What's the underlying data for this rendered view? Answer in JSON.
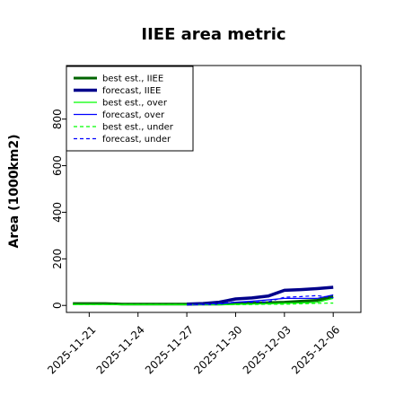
{
  "chart_data": {
    "type": "line",
    "title": "IIEE area metric",
    "xlabel": "",
    "ylabel": "Area (1000km2)",
    "ylim": [
      -30,
      1030
    ],
    "yticks": [
      0,
      200,
      400,
      600,
      800
    ],
    "xticks": [
      "2025-11-21",
      "2025-11-24",
      "2025-11-27",
      "2025-11-30",
      "2025-12-03",
      "2025-12-06"
    ],
    "xtick_colors": [
      "#000000",
      "#000000",
      "#228b22",
      "#000000",
      "#000000",
      "#000000"
    ],
    "x_start": "2025-11-20",
    "x": [
      "2025-11-20",
      "2025-11-21",
      "2025-11-22",
      "2025-11-23",
      "2025-11-24",
      "2025-11-25",
      "2025-11-26",
      "2025-11-27",
      "2025-11-28",
      "2025-11-29",
      "2025-11-30",
      "2025-12-01",
      "2025-12-02",
      "2025-12-03",
      "2025-12-04",
      "2025-12-05",
      "2025-12-06"
    ],
    "grid": false,
    "legend_position": "top-left",
    "series": [
      {
        "name": "best est., IIEE",
        "color": "#006400",
        "style": "solid",
        "width": 3,
        "values": [
          8,
          8,
          8,
          6,
          6,
          6,
          6,
          6,
          6,
          6,
          8,
          10,
          12,
          14,
          18,
          22,
          38
        ]
      },
      {
        "name": "forecast, IIEE",
        "color": "#00008b",
        "style": "solid",
        "width": 3.5,
        "values": [
          null,
          null,
          null,
          null,
          null,
          null,
          null,
          6,
          8,
          14,
          28,
          32,
          40,
          65,
          68,
          72,
          78
        ]
      },
      {
        "name": "best est., over",
        "color": "#00ff00",
        "style": "solid",
        "width": 1.2,
        "values": [
          4,
          4,
          4,
          3,
          3,
          3,
          3,
          3,
          3,
          3,
          5,
          6,
          7,
          9,
          11,
          13,
          30
        ]
      },
      {
        "name": "forecast, over",
        "color": "#0000ff",
        "style": "solid",
        "width": 1.2,
        "values": [
          null,
          null,
          null,
          null,
          null,
          null,
          null,
          3,
          3,
          5,
          14,
          18,
          24,
          30,
          30,
          30,
          45
        ]
      },
      {
        "name": "best est., under",
        "color": "#00ff00",
        "style": "dashed",
        "width": 1.2,
        "values": [
          4,
          4,
          4,
          3,
          3,
          3,
          3,
          3,
          3,
          3,
          3,
          4,
          5,
          5,
          7,
          9,
          10
        ]
      },
      {
        "name": "forecast, under",
        "color": "#0000ff",
        "style": "dashed",
        "width": 1.2,
        "values": [
          null,
          null,
          null,
          null,
          null,
          null,
          null,
          3,
          5,
          9,
          14,
          14,
          16,
          35,
          38,
          42,
          33
        ]
      }
    ]
  }
}
